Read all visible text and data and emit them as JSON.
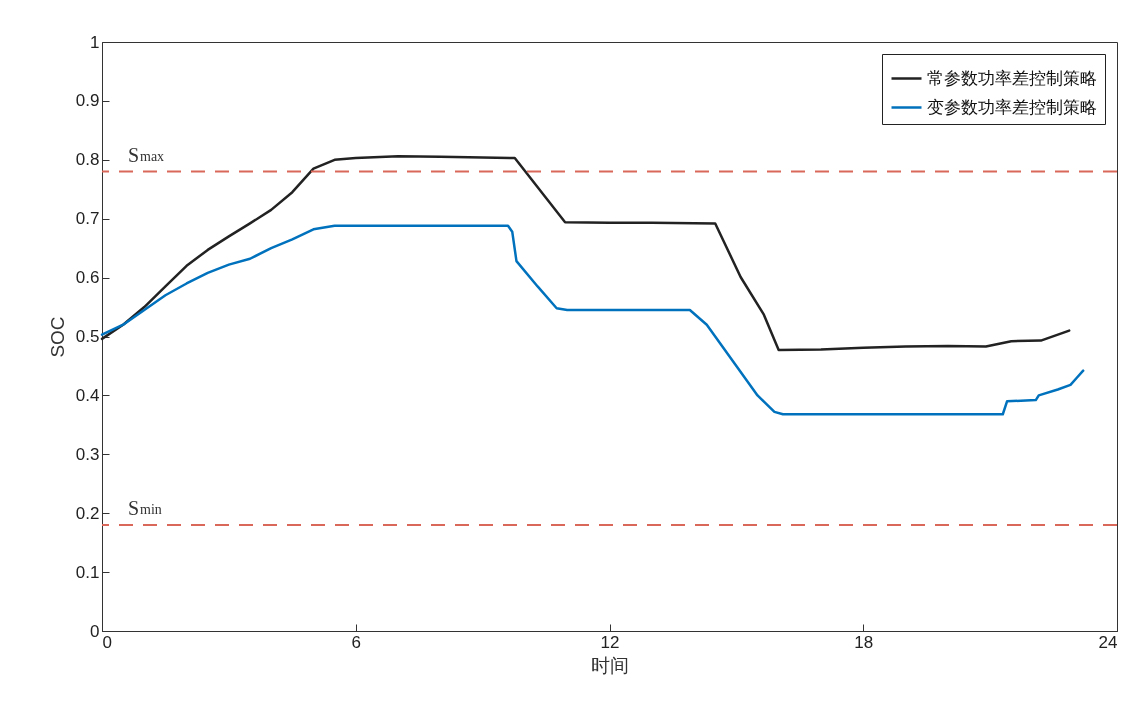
{
  "chart_data": {
    "type": "line",
    "xlabel": "时间",
    "ylabel": "SOC",
    "xlim": [
      0,
      24
    ],
    "xticks": [
      0,
      6,
      12,
      18,
      24
    ],
    "ylim": [
      0,
      1
    ],
    "yticks": [
      0,
      0.1,
      0.2,
      0.3,
      0.4,
      0.5,
      0.6,
      0.7,
      0.8,
      0.9,
      1
    ],
    "grid": false,
    "legend": "top right",
    "line_style": "solid",
    "marker": "none",
    "series": [
      {
        "name": "常参数功率差控制策略",
        "color": "#222222",
        "x": [
          0,
          0.5,
          1,
          1.5,
          2,
          2.5,
          3,
          3.5,
          4,
          4.5,
          5,
          5.5,
          6,
          7,
          8,
          9,
          9.76,
          10.95,
          12,
          13,
          14.5,
          15.1,
          15.65,
          16.0,
          17,
          18,
          19,
          20,
          20.9,
          21.5,
          22.2,
          22.87
        ],
        "values": [
          0.496,
          0.52,
          0.55,
          0.585,
          0.62,
          0.647,
          0.67,
          0.692,
          0.715,
          0.745,
          0.785,
          0.8,
          0.803,
          0.806,
          0.805,
          0.804,
          0.803,
          0.694,
          0.693,
          0.693,
          0.692,
          0.601,
          0.537,
          0.477,
          0.478,
          0.481,
          0.483,
          0.484,
          0.483,
          0.492,
          0.493,
          0.51
        ]
      },
      {
        "name": "变参数功率差控制策略",
        "color": "#0072bd",
        "x": [
          0,
          0.5,
          1,
          1.5,
          2,
          2.5,
          3,
          3.5,
          4,
          4.5,
          5,
          5.5,
          7,
          9.6,
          9.7,
          9.8,
          10.3,
          10.75,
          11,
          12,
          13.9,
          14.3,
          15.0,
          15.5,
          15.9,
          16.1,
          18,
          21.3,
          21.4,
          22.08,
          22.15,
          22.6,
          22.9,
          23.05,
          23.2
        ],
        "values": [
          0.503,
          0.52,
          0.545,
          0.57,
          0.59,
          0.608,
          0.622,
          0.632,
          0.65,
          0.665,
          0.682,
          0.688,
          0.688,
          0.688,
          0.678,
          0.628,
          0.585,
          0.548,
          0.545,
          0.545,
          0.545,
          0.52,
          0.45,
          0.4,
          0.372,
          0.368,
          0.368,
          0.368,
          0.39,
          0.392,
          0.4,
          0.41,
          0.418,
          0.43,
          0.442
        ]
      }
    ],
    "ref_lines": [
      {
        "axis": "y",
        "value": 0.78,
        "label": "S$_{max}$",
        "color": "#d9675a",
        "line_style": "dashed"
      },
      {
        "axis": "y",
        "value": 0.18,
        "label": "S$_{min}$",
        "color": "#d9675a",
        "line_style": "dashed"
      }
    ]
  }
}
